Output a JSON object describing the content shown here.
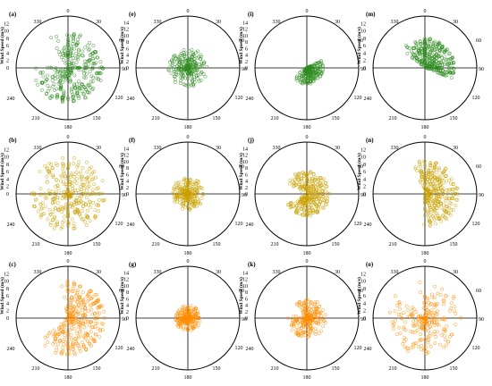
{
  "figure": {
    "colors": {
      "row1": "#2e8b1f",
      "row2": "#c9a000",
      "row3": "#ff8c00"
    },
    "direction_labels": [
      "0",
      "30",
      "60",
      "90",
      "120",
      "150",
      "180",
      "210",
      "240",
      "330"
    ]
  },
  "chart_data": [
    {
      "panel": "(a)",
      "type": "scatter",
      "coord": "polar",
      "ylabel": "Wind Speed (m/s)",
      "radial_ticks": [
        "0",
        "2",
        "4",
        "6",
        "8",
        "10",
        "12"
      ],
      "rlim": [
        0,
        14
      ],
      "color": "#2e8b1f",
      "shape": "spokes",
      "spread": 150,
      "bias_dir": 120,
      "max_speed": 9.5
    },
    {
      "panel": "(b)",
      "type": "scatter",
      "coord": "polar",
      "ylabel": "Wind Speed (m/s)",
      "radial_ticks": [
        "0",
        "2",
        "4",
        "6",
        "8",
        "10",
        "12"
      ],
      "rlim": [
        0,
        14
      ],
      "color": "#c9a000",
      "shape": "spokes",
      "spread": 170,
      "bias_dir": 110,
      "max_speed": 10
    },
    {
      "panel": "(c)",
      "type": "scatter",
      "coord": "polar",
      "ylabel": "Wind Speed (m/s)",
      "radial_ticks": [
        "0",
        "2",
        "4",
        "6",
        "8",
        "10",
        "12"
      ],
      "rlim": [
        0,
        14
      ],
      "color": "#ff8c00",
      "shape": "spokes",
      "spread": 120,
      "bias_dir": 110,
      "max_speed": 10
    },
    {
      "panel": "(e)",
      "type": "scatter",
      "coord": "polar",
      "ylabel": "Wind Speed (m/s)",
      "radial_ticks": [
        "0",
        "2",
        "4",
        "6",
        "8",
        "10",
        "12",
        "14"
      ],
      "rlim": [
        0,
        16
      ],
      "color": "#2e8b1f",
      "shape": "blob",
      "spread": 180,
      "bias_dir": 90,
      "max_speed": 6
    },
    {
      "panel": "(f)",
      "type": "scatter",
      "coord": "polar",
      "ylabel": "Wind Speed (m/s)",
      "radial_ticks": [
        "0",
        "2",
        "4",
        "6",
        "8",
        "10",
        "12",
        "14"
      ],
      "rlim": [
        0,
        16
      ],
      "color": "#c9a000",
      "shape": "blob",
      "spread": 180,
      "bias_dir": 180,
      "max_speed": 5
    },
    {
      "panel": "(g)",
      "type": "scatter",
      "coord": "polar",
      "ylabel": "Wind Speed (m/s)",
      "radial_ticks": [
        "0",
        "2",
        "4",
        "6",
        "8",
        "10",
        "12",
        "14"
      ],
      "rlim": [
        0,
        16
      ],
      "color": "#ff8c00",
      "shape": "blob",
      "spread": 180,
      "bias_dir": 180,
      "max_speed": 4
    },
    {
      "panel": "(i)",
      "type": "scatter",
      "coord": "polar",
      "ylabel": "Wind Speed (m/s)",
      "radial_ticks": [
        "0",
        "2",
        "4",
        "6",
        "8",
        "10",
        "12",
        "14"
      ],
      "rlim": [
        0,
        16
      ],
      "color": "#2e8b1f",
      "shape": "blob",
      "spread": 90,
      "bias_dir": 150,
      "max_speed": 5
    },
    {
      "panel": "(j)",
      "type": "scatter",
      "coord": "polar",
      "ylabel": "Wind Speed (m/s)",
      "radial_ticks": [
        "0",
        "2",
        "4",
        "6",
        "8",
        "10",
        "12",
        "14"
      ],
      "rlim": [
        0,
        16
      ],
      "color": "#c9a000",
      "shape": "spokes",
      "spread": 150,
      "bias_dir": 90,
      "max_speed": 7
    },
    {
      "panel": "(k)",
      "type": "scatter",
      "coord": "polar",
      "ylabel": "Wind Speed (m/s)",
      "radial_ticks": [
        "0",
        "2",
        "4",
        "6",
        "8",
        "10",
        "12",
        "14"
      ],
      "rlim": [
        0,
        16
      ],
      "color": "#ff8c00",
      "shape": "blob",
      "spread": 160,
      "bias_dir": 120,
      "max_speed": 6
    },
    {
      "panel": "(m)",
      "type": "scatter",
      "coord": "polar",
      "ylabel": "Wind Speed (m/s)",
      "radial_ticks": [
        "0",
        "2",
        "4",
        "6",
        "8",
        "10",
        "12"
      ],
      "rlim": [
        0,
        14
      ],
      "color": "#2e8b1f",
      "shape": "spokes",
      "spread": 80,
      "bias_dir": 30,
      "max_speed": 8
    },
    {
      "panel": "(n)",
      "type": "scatter",
      "coord": "polar",
      "ylabel": "Wind Speed (m/s)",
      "radial_ticks": [
        "0",
        "2",
        "4",
        "6",
        "8",
        "10",
        "12"
      ],
      "rlim": [
        0,
        14
      ],
      "color": "#c9a000",
      "shape": "spokes",
      "spread": 100,
      "bias_dir": 80,
      "max_speed": 9
    },
    {
      "panel": "(o)",
      "type": "scatter",
      "coord": "polar",
      "ylabel": "Wind Speed (m/s)",
      "radial_ticks": [
        "0",
        "2",
        "4",
        "6",
        "8",
        "10",
        "12"
      ],
      "rlim": [
        0,
        14
      ],
      "color": "#ff8c00",
      "shape": "blob",
      "spread": 160,
      "bias_dir": 150,
      "max_speed": 10
    }
  ]
}
